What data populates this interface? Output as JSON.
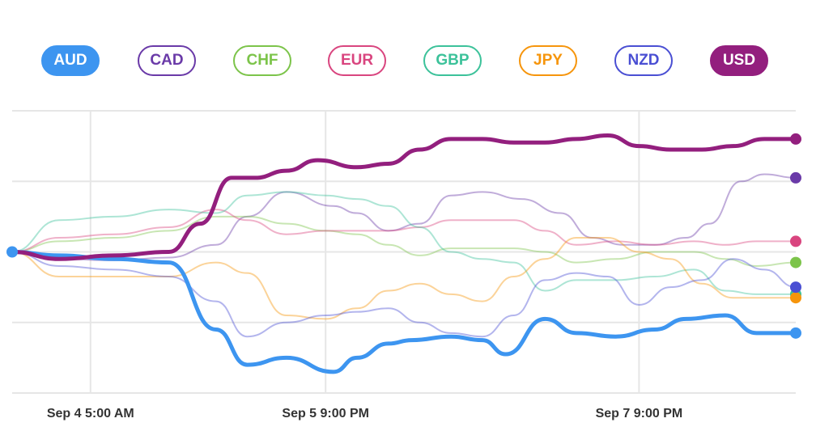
{
  "legend": [
    {
      "code": "AUD",
      "color": "#3d95f0",
      "active": true
    },
    {
      "code": "CAD",
      "color": "#6a3aa8",
      "active": false
    },
    {
      "code": "CHF",
      "color": "#7cc44a",
      "active": false
    },
    {
      "code": "EUR",
      "color": "#d9457f",
      "active": false
    },
    {
      "code": "GBP",
      "color": "#3cc29a",
      "active": false
    },
    {
      "code": "JPY",
      "color": "#f6950c",
      "active": false
    },
    {
      "code": "NZD",
      "color": "#4a4fd3",
      "active": false
    },
    {
      "code": "USD",
      "color": "#931f7e",
      "active": true
    }
  ],
  "chart_data": {
    "type": "line",
    "xlabel": "",
    "ylabel": "",
    "x_tick_labels": [
      "Sep 4 5:00 AM",
      "Sep 5 9:00 PM",
      "Sep 7 9:00 PM"
    ],
    "x_tick_positions": [
      0.1,
      0.4,
      0.8
    ],
    "ylim": [
      -2,
      2
    ],
    "grid": true,
    "legend_position": "top",
    "series": [
      {
        "name": "AUD",
        "color": "#3d95f0",
        "highlight": true,
        "x": [
          0,
          0.06,
          0.13,
          0.2,
          0.26,
          0.3,
          0.35,
          0.41,
          0.44,
          0.48,
          0.51,
          0.56,
          0.6,
          0.63,
          0.68,
          0.72,
          0.77,
          0.82,
          0.86,
          0.91,
          0.95,
          1
        ],
        "y": [
          0,
          -0.05,
          -0.1,
          -0.15,
          -1.1,
          -1.6,
          -1.5,
          -1.7,
          -1.5,
          -1.3,
          -1.25,
          -1.2,
          -1.25,
          -1.45,
          -0.95,
          -1.15,
          -1.2,
          -1.1,
          -0.95,
          -0.9,
          -1.15,
          -1.15
        ]
      },
      {
        "name": "CAD",
        "color": "#6a3aa8",
        "highlight": false,
        "x": [
          0,
          0.06,
          0.13,
          0.2,
          0.26,
          0.3,
          0.35,
          0.41,
          0.44,
          0.48,
          0.52,
          0.56,
          0.6,
          0.65,
          0.7,
          0.74,
          0.78,
          0.82,
          0.86,
          0.89,
          0.93,
          0.96,
          1
        ],
        "y": [
          0,
          -0.1,
          -0.12,
          -0.08,
          0.1,
          0.5,
          0.85,
          0.65,
          0.55,
          0.3,
          0.4,
          0.8,
          0.85,
          0.75,
          0.55,
          0.2,
          0.1,
          0.1,
          0.2,
          0.4,
          1.0,
          1.1,
          1.05
        ]
      },
      {
        "name": "CHF",
        "color": "#7cc44a",
        "highlight": false,
        "x": [
          0,
          0.06,
          0.13,
          0.2,
          0.26,
          0.3,
          0.35,
          0.4,
          0.44,
          0.48,
          0.52,
          0.56,
          0.6,
          0.64,
          0.68,
          0.72,
          0.77,
          0.82,
          0.87,
          0.91,
          0.95,
          1
        ],
        "y": [
          0,
          0.15,
          0.2,
          0.3,
          0.5,
          0.5,
          0.4,
          0.3,
          0.25,
          0.1,
          -0.05,
          0.05,
          0.05,
          0.05,
          0.0,
          -0.15,
          -0.1,
          0.0,
          0.0,
          -0.1,
          -0.2,
          -0.15
        ]
      },
      {
        "name": "EUR",
        "color": "#d9457f",
        "highlight": false,
        "x": [
          0,
          0.06,
          0.13,
          0.2,
          0.26,
          0.3,
          0.35,
          0.4,
          0.44,
          0.48,
          0.52,
          0.56,
          0.6,
          0.64,
          0.68,
          0.72,
          0.77,
          0.82,
          0.87,
          0.91,
          0.95,
          1
        ],
        "y": [
          0,
          0.2,
          0.25,
          0.35,
          0.6,
          0.45,
          0.25,
          0.3,
          0.3,
          0.3,
          0.35,
          0.45,
          0.45,
          0.45,
          0.3,
          0.1,
          0.15,
          0.1,
          0.15,
          0.1,
          0.15,
          0.15
        ]
      },
      {
        "name": "GBP",
        "color": "#3cc29a",
        "highlight": false,
        "x": [
          0,
          0.06,
          0.13,
          0.2,
          0.26,
          0.3,
          0.35,
          0.4,
          0.44,
          0.48,
          0.52,
          0.56,
          0.6,
          0.64,
          0.68,
          0.72,
          0.77,
          0.82,
          0.87,
          0.91,
          0.95,
          1
        ],
        "y": [
          0,
          0.45,
          0.5,
          0.6,
          0.55,
          0.8,
          0.85,
          0.8,
          0.75,
          0.65,
          0.35,
          0.0,
          -0.1,
          -0.15,
          -0.55,
          -0.4,
          -0.4,
          -0.35,
          -0.25,
          -0.55,
          -0.6,
          -0.6
        ]
      },
      {
        "name": "JPY",
        "color": "#f6950c",
        "highlight": false,
        "x": [
          0,
          0.06,
          0.13,
          0.2,
          0.26,
          0.3,
          0.35,
          0.4,
          0.44,
          0.48,
          0.52,
          0.56,
          0.6,
          0.64,
          0.68,
          0.72,
          0.76,
          0.8,
          0.84,
          0.88,
          0.92,
          0.96,
          1
        ],
        "y": [
          0,
          -0.35,
          -0.35,
          -0.35,
          -0.15,
          -0.3,
          -0.9,
          -0.95,
          -0.8,
          -0.55,
          -0.45,
          -0.6,
          -0.7,
          -0.35,
          -0.1,
          0.2,
          0.2,
          0.0,
          -0.1,
          -0.45,
          -0.65,
          -0.65,
          -0.65
        ]
      },
      {
        "name": "NZD",
        "color": "#4a4fd3",
        "highlight": false,
        "x": [
          0,
          0.06,
          0.13,
          0.2,
          0.26,
          0.3,
          0.35,
          0.4,
          0.44,
          0.48,
          0.52,
          0.56,
          0.6,
          0.64,
          0.68,
          0.72,
          0.76,
          0.8,
          0.84,
          0.88,
          0.92,
          0.96,
          1
        ],
        "y": [
          0,
          -0.2,
          -0.25,
          -0.35,
          -0.7,
          -1.2,
          -1.0,
          -0.9,
          -0.85,
          -0.8,
          -1.0,
          -1.15,
          -1.2,
          -0.9,
          -0.4,
          -0.3,
          -0.35,
          -0.75,
          -0.5,
          -0.4,
          -0.1,
          -0.25,
          -0.5
        ]
      },
      {
        "name": "USD",
        "color": "#931f7e",
        "highlight": true,
        "x": [
          0,
          0.06,
          0.13,
          0.2,
          0.24,
          0.28,
          0.31,
          0.35,
          0.39,
          0.44,
          0.48,
          0.52,
          0.56,
          0.6,
          0.64,
          0.68,
          0.72,
          0.76,
          0.8,
          0.84,
          0.88,
          0.92,
          0.96,
          1
        ],
        "y": [
          0,
          -0.1,
          -0.05,
          0.0,
          0.4,
          1.05,
          1.05,
          1.15,
          1.3,
          1.2,
          1.25,
          1.45,
          1.6,
          1.6,
          1.55,
          1.55,
          1.6,
          1.65,
          1.5,
          1.45,
          1.45,
          1.5,
          1.6,
          1.6
        ]
      }
    ]
  }
}
